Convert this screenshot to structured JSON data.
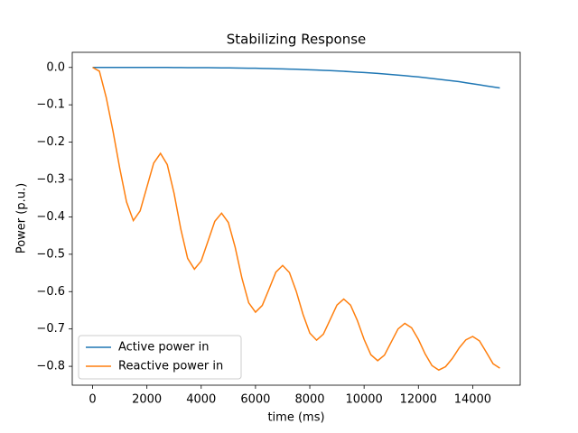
{
  "chart_data": {
    "type": "line",
    "title": "Stabilizing Response",
    "x_label": "time (ms)",
    "y_label": "Power (p.u.)",
    "x": [
      0,
      250,
      500,
      750,
      1000,
      1250,
      1500,
      1750,
      2000,
      2250,
      2500,
      2750,
      3000,
      3250,
      3500,
      3750,
      4000,
      4250,
      4500,
      4750,
      5000,
      5250,
      5500,
      5750,
      6000,
      6250,
      6500,
      6750,
      7000,
      7250,
      7500,
      7750,
      8000,
      8250,
      8500,
      8750,
      9000,
      9250,
      9500,
      9750,
      10000,
      10250,
      10500,
      10750,
      11000,
      11250,
      11500,
      11750,
      12000,
      12250,
      12500,
      12750,
      13000,
      13250,
      13500,
      13750,
      14000,
      14250,
      14500,
      14750,
      15000
    ],
    "series": [
      {
        "name": "Active power in",
        "color": "#1f77b4",
        "values": [
          0,
          0,
          0,
          0,
          0,
          0,
          0,
          0,
          0,
          0,
          -0.0001,
          -0.0001,
          -0.0002,
          -0.0003,
          -0.0004,
          -0.0005,
          -0.0006,
          -0.0007,
          -0.0008,
          -0.001,
          -0.0012,
          -0.0015,
          -0.0017,
          -0.002,
          -0.0022,
          -0.0026,
          -0.003,
          -0.0035,
          -0.004,
          -0.0044,
          -0.0049,
          -0.0056,
          -0.0063,
          -0.007,
          -0.0078,
          -0.0085,
          -0.0092,
          -0.0103,
          -0.0114,
          -0.0125,
          -0.0136,
          -0.0147,
          -0.0158,
          -0.0174,
          -0.0189,
          -0.0205,
          -0.0221,
          -0.0237,
          -0.0252,
          -0.0274,
          -0.0295,
          -0.0317,
          -0.0338,
          -0.036,
          -0.0381,
          -0.0409,
          -0.0437,
          -0.0465,
          -0.0494,
          -0.0522,
          -0.055
        ]
      },
      {
        "name": "Reactive power in",
        "color": "#ff7f0e",
        "values": [
          0,
          -0.01,
          -0.08,
          -0.17,
          -0.27,
          -0.36,
          -0.41,
          -0.384,
          -0.32,
          -0.256,
          -0.23,
          -0.26,
          -0.337,
          -0.433,
          -0.511,
          -0.54,
          -0.518,
          -0.465,
          -0.412,
          -0.39,
          -0.415,
          -0.481,
          -0.564,
          -0.63,
          -0.655,
          -0.637,
          -0.593,
          -0.548,
          -0.53,
          -0.549,
          -0.599,
          -0.661,
          -0.711,
          -0.73,
          -0.714,
          -0.675,
          -0.636,
          -0.62,
          -0.636,
          -0.677,
          -0.728,
          -0.769,
          -0.785,
          -0.77,
          -0.735,
          -0.7,
          -0.685,
          -0.697,
          -0.728,
          -0.767,
          -0.798,
          -0.81,
          -0.801,
          -0.779,
          -0.751,
          -0.729,
          -0.72,
          -0.732,
          -0.762,
          -0.793,
          -0.805
        ]
      }
    ],
    "xlim": [
      -750,
      15750
    ],
    "ylim": [
      -0.8505,
      0.0405
    ],
    "xticks": [
      0,
      2000,
      4000,
      6000,
      8000,
      10000,
      12000,
      14000
    ],
    "yticks": [
      {
        "value": 0,
        "label": "0.0"
      },
      {
        "value": -0.1,
        "label": "−0.1"
      },
      {
        "value": -0.2,
        "label": "−0.2"
      },
      {
        "value": -0.3,
        "label": "−0.3"
      },
      {
        "value": -0.4,
        "label": "−0.4"
      },
      {
        "value": -0.5,
        "label": "−0.5"
      },
      {
        "value": -0.6,
        "label": "−0.6"
      },
      {
        "value": -0.7,
        "label": "−0.7"
      },
      {
        "value": -0.8,
        "label": "−0.8"
      }
    ],
    "legend": "lower left"
  }
}
